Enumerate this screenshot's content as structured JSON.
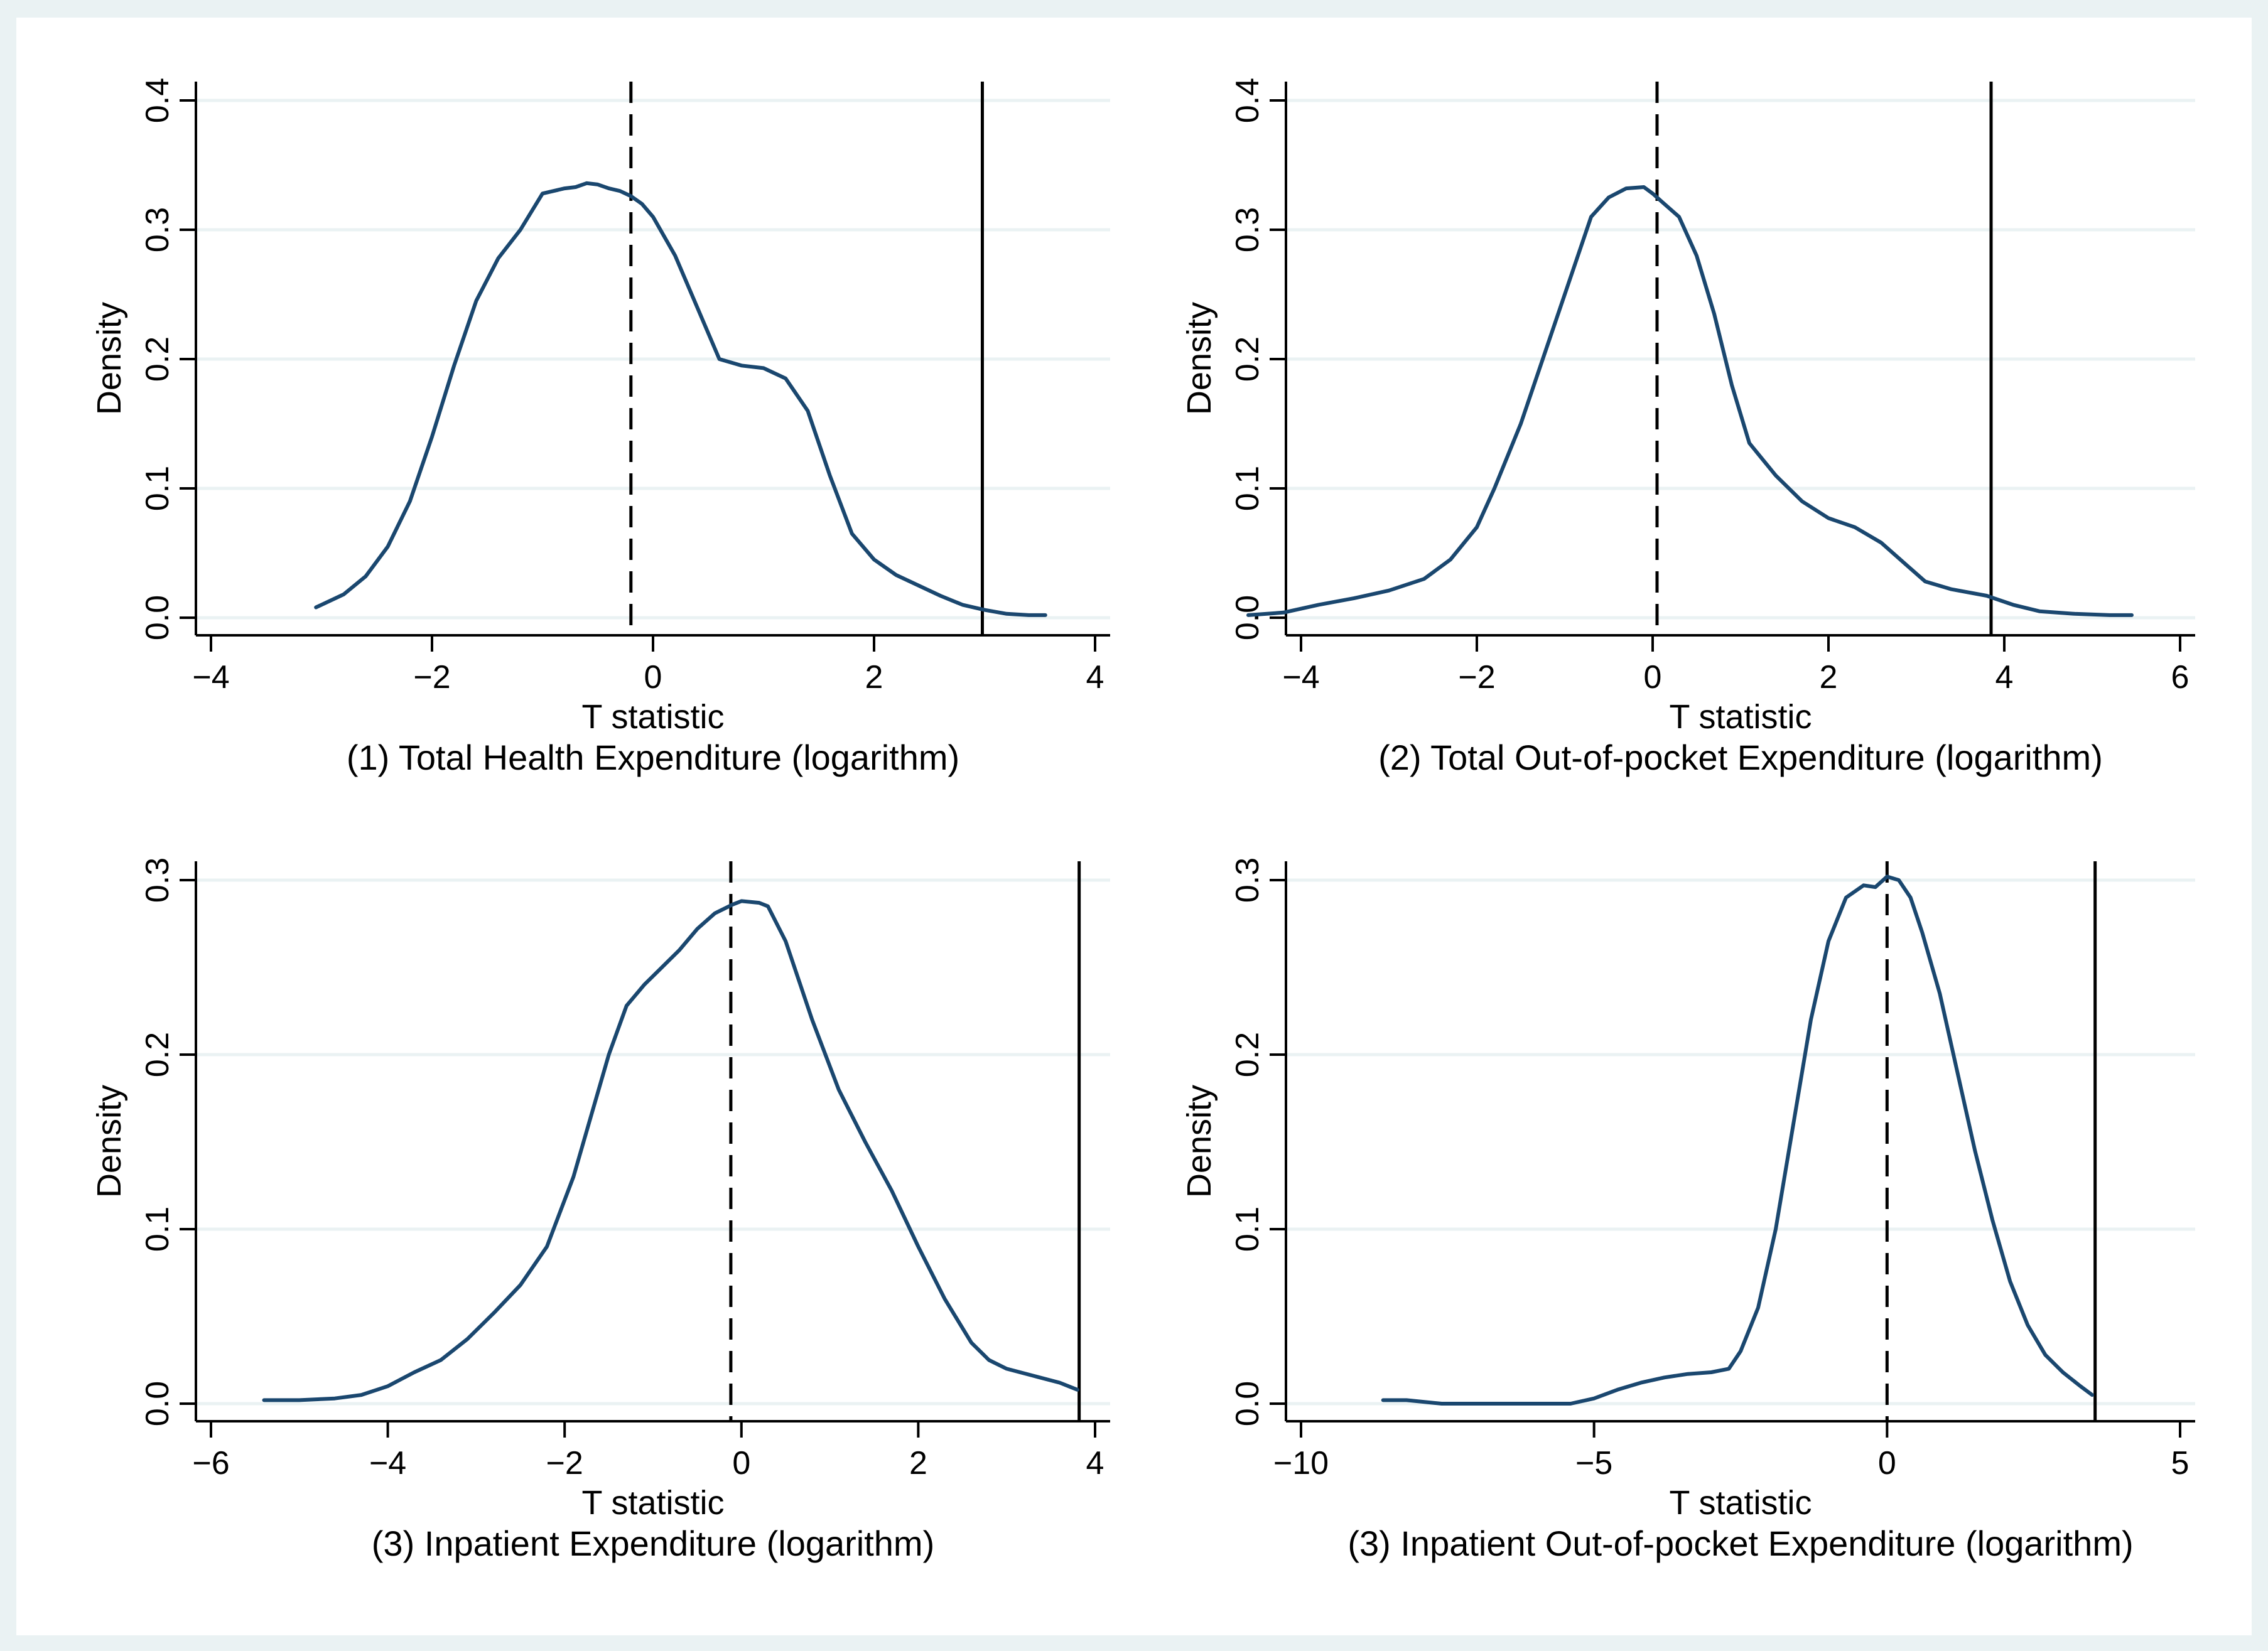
{
  "chart_data": [
    {
      "type": "line",
      "title": "(1) Total Health Expenditure (logarithm)",
      "xlabel": "T statistic",
      "ylabel": "Density",
      "xlim": [
        -4,
        4
      ],
      "ylim": [
        0,
        0.4
      ],
      "xticks": [
        "−4",
        "−2",
        "0",
        "2",
        "4"
      ],
      "xtick_values": [
        -4,
        -2,
        0,
        2,
        4
      ],
      "yticks": [
        "0.0",
        "0.1",
        "0.2",
        "0.3",
        "0.4"
      ],
      "ytick_values": [
        0,
        0.1,
        0.2,
        0.3,
        0.4
      ],
      "grid": true,
      "dashed_line_x": -0.2,
      "solid_line_x": 2.98,
      "series": [
        {
          "name": "Density",
          "x": [
            -3.05,
            -2.8,
            -2.6,
            -2.4,
            -2.2,
            -2.0,
            -1.8,
            -1.6,
            -1.4,
            -1.2,
            -1.0,
            -0.8,
            -0.7,
            -0.6,
            -0.5,
            -0.4,
            -0.3,
            -0.2,
            -0.1,
            0.0,
            0.2,
            0.4,
            0.6,
            0.8,
            1.0,
            1.2,
            1.4,
            1.6,
            1.8,
            2.0,
            2.2,
            2.4,
            2.6,
            2.8,
            3.0,
            3.2,
            3.4,
            3.55
          ],
          "y": [
            0.008,
            0.018,
            0.032,
            0.055,
            0.09,
            0.14,
            0.195,
            0.245,
            0.278,
            0.3,
            0.328,
            0.332,
            0.333,
            0.336,
            0.335,
            0.332,
            0.33,
            0.326,
            0.32,
            0.31,
            0.28,
            0.24,
            0.2,
            0.195,
            0.193,
            0.185,
            0.16,
            0.11,
            0.065,
            0.045,
            0.033,
            0.025,
            0.017,
            0.01,
            0.006,
            0.003,
            0.002,
            0.002
          ]
        }
      ]
    },
    {
      "type": "line",
      "title": "(2) Total Out-of-pocket Expenditure (logarithm)",
      "xlabel": "T statistic",
      "ylabel": "Density",
      "xlim": [
        -4,
        6
      ],
      "ylim": [
        0,
        0.4
      ],
      "xticks": [
        "−4",
        "−2",
        "0",
        "2",
        "4",
        "6"
      ],
      "xtick_values": [
        -4,
        -2,
        0,
        2,
        4,
        6
      ],
      "yticks": [
        "0.0",
        "0.1",
        "0.2",
        "0.3",
        "0.4"
      ],
      "ytick_values": [
        0,
        0.1,
        0.2,
        0.3,
        0.4
      ],
      "grid": true,
      "dashed_line_x": 0.05,
      "solid_line_x": 3.85,
      "series": [
        {
          "name": "Density",
          "x": [
            -4.6,
            -4.2,
            -3.8,
            -3.4,
            -3.0,
            -2.6,
            -2.3,
            -2.0,
            -1.8,
            -1.5,
            -1.2,
            -0.9,
            -0.7,
            -0.5,
            -0.3,
            -0.1,
            0.0,
            0.1,
            0.3,
            0.5,
            0.7,
            0.9,
            1.1,
            1.4,
            1.7,
            2.0,
            2.3,
            2.6,
            2.9,
            3.1,
            3.4,
            3.8,
            4.1,
            4.4,
            4.8,
            5.2,
            5.45
          ],
          "y": [
            0.002,
            0.004,
            0.01,
            0.015,
            0.021,
            0.03,
            0.045,
            0.07,
            0.1,
            0.15,
            0.21,
            0.27,
            0.31,
            0.325,
            0.332,
            0.333,
            0.328,
            0.322,
            0.31,
            0.28,
            0.235,
            0.18,
            0.135,
            0.11,
            0.09,
            0.077,
            0.07,
            0.058,
            0.04,
            0.028,
            0.022,
            0.017,
            0.01,
            0.005,
            0.003,
            0.002,
            0.002
          ]
        }
      ]
    },
    {
      "type": "line",
      "title": "(3) Inpatient Expenditure (logarithm)",
      "xlabel": "T statistic",
      "ylabel": "Density",
      "xlim": [
        -6,
        4
      ],
      "ylim": [
        0,
        0.3
      ],
      "xticks": [
        "−6",
        "−4",
        "−2",
        "0",
        "2",
        "4"
      ],
      "xtick_values": [
        -6,
        -4,
        -2,
        0,
        2,
        4
      ],
      "yticks": [
        "0.0",
        "0.1",
        "0.2",
        "0.3"
      ],
      "ytick_values": [
        0,
        0.1,
        0.2,
        0.3
      ],
      "grid": true,
      "dashed_line_x": -0.12,
      "solid_line_x": 3.82,
      "series": [
        {
          "name": "Density",
          "x": [
            -5.4,
            -5.0,
            -4.6,
            -4.3,
            -4.0,
            -3.7,
            -3.4,
            -3.1,
            -2.8,
            -2.5,
            -2.2,
            -1.9,
            -1.7,
            -1.5,
            -1.3,
            -1.1,
            -0.9,
            -0.7,
            -0.5,
            -0.3,
            -0.1,
            0.0,
            0.2,
            0.3,
            0.5,
            0.8,
            1.1,
            1.4,
            1.7,
            2.0,
            2.3,
            2.6,
            2.8,
            3.0,
            3.3,
            3.6,
            3.8
          ],
          "y": [
            0.002,
            0.002,
            0.003,
            0.005,
            0.01,
            0.018,
            0.025,
            0.037,
            0.052,
            0.068,
            0.09,
            0.13,
            0.165,
            0.2,
            0.228,
            0.24,
            0.25,
            0.26,
            0.272,
            0.281,
            0.286,
            0.288,
            0.287,
            0.285,
            0.265,
            0.22,
            0.18,
            0.15,
            0.122,
            0.09,
            0.06,
            0.035,
            0.025,
            0.02,
            0.016,
            0.012,
            0.008
          ]
        }
      ]
    },
    {
      "type": "line",
      "title": "(3) Inpatient Out-of-pocket Expenditure (logarithm)",
      "xlabel": "T statistic",
      "ylabel": "Density",
      "xlim": [
        -10,
        5
      ],
      "ylim": [
        0,
        0.3
      ],
      "xticks": [
        "−10",
        "−5",
        "0",
        "5"
      ],
      "xtick_values": [
        -10,
        -5,
        0,
        5
      ],
      "yticks": [
        "0.0",
        "0.1",
        "0.2",
        "0.3"
      ],
      "ytick_values": [
        0,
        0.1,
        0.2,
        0.3
      ],
      "grid": true,
      "dashed_line_x": 0.0,
      "solid_line_x": 3.55,
      "series": [
        {
          "name": "Density",
          "x": [
            -8.6,
            -8.2,
            -7.6,
            -7.0,
            -6.4,
            -5.8,
            -5.4,
            -5.0,
            -4.6,
            -4.2,
            -3.8,
            -3.4,
            -3.0,
            -2.7,
            -2.5,
            -2.2,
            -1.9,
            -1.6,
            -1.3,
            -1.0,
            -0.7,
            -0.4,
            -0.2,
            0.0,
            0.2,
            0.4,
            0.6,
            0.9,
            1.2,
            1.5,
            1.8,
            2.1,
            2.4,
            2.7,
            3.0,
            3.3,
            3.5
          ],
          "y": [
            0.002,
            0.002,
            0.0,
            0.0,
            0.0,
            0.0,
            0.0,
            0.003,
            0.008,
            0.012,
            0.015,
            0.017,
            0.018,
            0.02,
            0.03,
            0.055,
            0.1,
            0.16,
            0.22,
            0.265,
            0.29,
            0.297,
            0.296,
            0.302,
            0.3,
            0.29,
            0.27,
            0.235,
            0.19,
            0.145,
            0.105,
            0.07,
            0.045,
            0.028,
            0.018,
            0.01,
            0.005
          ]
        }
      ]
    }
  ]
}
